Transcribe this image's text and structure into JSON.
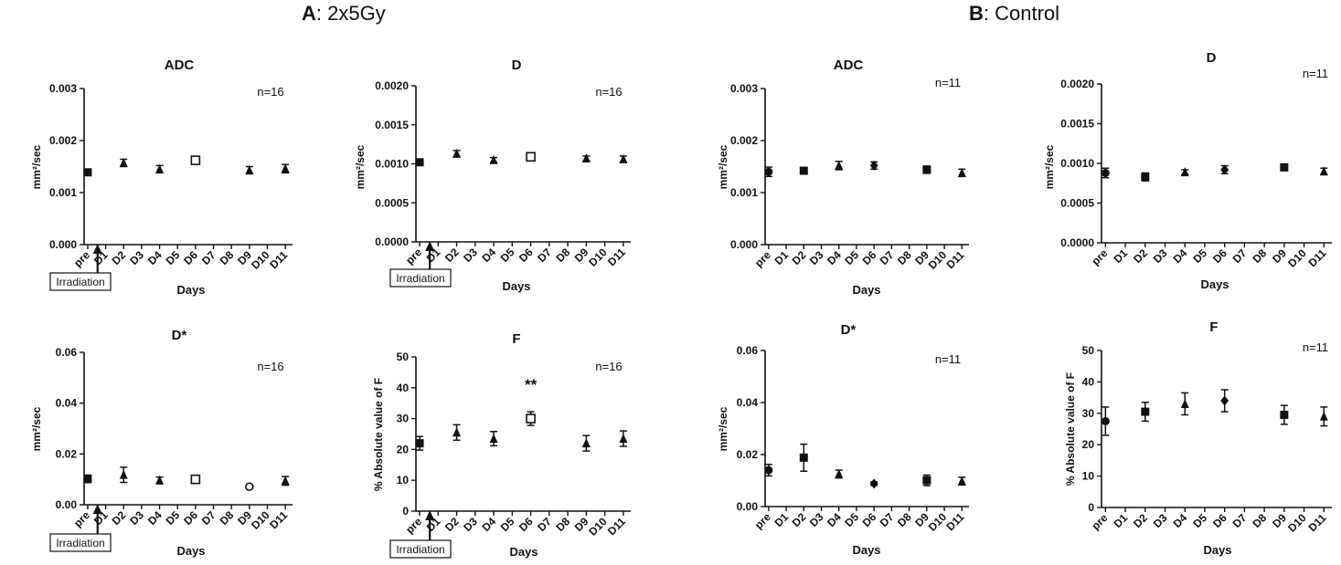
{
  "groups": [
    {
      "letter": "A",
      "label": ": 2x5Gy"
    },
    {
      "letter": "B",
      "label": ": Control"
    }
  ],
  "categories": [
    "pre",
    "D1",
    "D2",
    "D3",
    "D4",
    "D5",
    "D6",
    "D7",
    "D8",
    "D9",
    "D10",
    "D11"
  ],
  "irradiation_label": "Irradiation",
  "chart_data": [
    {
      "id": "a-adc",
      "type": "scatter",
      "title": "ADC",
      "n_label": "n=16",
      "xlabel": "Days",
      "ylabel": "mm²/sec",
      "ylim": [
        0,
        0.003
      ],
      "yticks": [
        "0.000",
        "0.001",
        "0.002",
        "0.003"
      ],
      "marker": "triangle",
      "points": [
        {
          "x": "pre",
          "y": 0.00139,
          "err": 5e-05,
          "marker": "square"
        },
        {
          "x": "D2",
          "y": 0.00157,
          "err": 7e-05
        },
        {
          "x": "D4",
          "y": 0.00145,
          "err": 7e-05
        },
        {
          "x": "D6",
          "y": 0.00162,
          "err": 5e-05,
          "marker": "square-open"
        },
        {
          "x": "D9",
          "y": 0.00143,
          "err": 7e-05
        },
        {
          "x": "D11",
          "y": 0.00146,
          "err": 8e-05
        }
      ],
      "irradiation": true
    },
    {
      "id": "a-d",
      "type": "scatter",
      "title": "D",
      "n_label": "n=16",
      "xlabel": "Days",
      "ylabel": "mm²/sec",
      "ylim": [
        0,
        0.002
      ],
      "yticks": [
        "0.0000",
        "0.0005",
        "0.0010",
        "0.0015",
        "0.0020"
      ],
      "marker": "triangle",
      "points": [
        {
          "x": "pre",
          "y": 0.00102,
          "err": 2e-05,
          "marker": "square"
        },
        {
          "x": "D2",
          "y": 0.00113,
          "err": 4e-05
        },
        {
          "x": "D4",
          "y": 0.00105,
          "err": 3e-05
        },
        {
          "x": "D6",
          "y": 0.00109,
          "err": 3e-05,
          "marker": "square-open"
        },
        {
          "x": "D9",
          "y": 0.00107,
          "err": 3e-05
        },
        {
          "x": "D11",
          "y": 0.00106,
          "err": 4e-05
        }
      ],
      "irradiation": true
    },
    {
      "id": "b-adc",
      "type": "scatter",
      "title": "ADC",
      "n_label": "n=11",
      "xlabel": "Days",
      "ylabel": "mm²/sec",
      "ylim": [
        0,
        0.003
      ],
      "yticks": [
        "0.000",
        "0.001",
        "0.002",
        "0.003"
      ],
      "marker": "triangle",
      "points": [
        {
          "x": "pre",
          "y": 0.0014,
          "err": 9e-05,
          "marker": "circle"
        },
        {
          "x": "D2",
          "y": 0.00142,
          "err": 6e-05,
          "marker": "square"
        },
        {
          "x": "D4",
          "y": 0.00152,
          "err": 8e-05
        },
        {
          "x": "D6",
          "y": 0.00152,
          "err": 7e-05,
          "marker": "diamond"
        },
        {
          "x": "D9",
          "y": 0.00144,
          "err": 7e-05,
          "marker": "square"
        },
        {
          "x": "D11",
          "y": 0.00138,
          "err": 7e-05
        }
      ],
      "irradiation": false
    },
    {
      "id": "b-d",
      "type": "scatter",
      "title": "D",
      "n_label": "n=11",
      "xlabel": "Days",
      "ylabel": "mm²/sec",
      "ylim": [
        0,
        0.002
      ],
      "yticks": [
        "0.0000",
        "0.0005",
        "0.0010",
        "0.0015",
        "0.0020"
      ],
      "marker": "triangle",
      "points": [
        {
          "x": "pre",
          "y": 0.00088,
          "err": 6e-05,
          "marker": "circle"
        },
        {
          "x": "D2",
          "y": 0.00083,
          "err": 5e-05,
          "marker": "square"
        },
        {
          "x": "D4",
          "y": 0.00089,
          "err": 3e-05
        },
        {
          "x": "D6",
          "y": 0.00092,
          "err": 5e-05,
          "marker": "diamond"
        },
        {
          "x": "D9",
          "y": 0.00095,
          "err": 2e-05,
          "marker": "square"
        },
        {
          "x": "D11",
          "y": 0.0009,
          "err": 4e-05
        }
      ],
      "irradiation": false
    },
    {
      "id": "a-dstar",
      "type": "scatter",
      "title": "D*",
      "n_label": "n=16",
      "xlabel": "Days",
      "ylabel": "mm²/sec",
      "ylim": [
        0,
        0.06
      ],
      "yticks": [
        "0.00",
        "0.02",
        "0.04",
        "0.06"
      ],
      "marker": "triangle",
      "points": [
        {
          "x": "pre",
          "y": 0.0102,
          "err": 0.0015,
          "marker": "square"
        },
        {
          "x": "D2",
          "y": 0.0118,
          "err": 0.003
        },
        {
          "x": "D4",
          "y": 0.0096,
          "err": 0.0013
        },
        {
          "x": "D6",
          "y": 0.01,
          "err": 0.0015,
          "marker": "square-open"
        },
        {
          "x": "D9",
          "y": 0.0071,
          "err": 0.0005,
          "marker": "circle-open"
        },
        {
          "x": "D11",
          "y": 0.0094,
          "err": 0.0017
        }
      ],
      "irradiation": true
    },
    {
      "id": "a-f",
      "type": "scatter",
      "title": "F",
      "n_label": "n=16",
      "xlabel": "Days",
      "ylabel": "% Absolute value of F",
      "ylim": [
        0,
        50
      ],
      "yticks": [
        "0",
        "10",
        "20",
        "30",
        "40",
        "50"
      ],
      "marker": "triangle",
      "points": [
        {
          "x": "pre",
          "y": 22,
          "err": 2.2,
          "marker": "square"
        },
        {
          "x": "D2",
          "y": 25.5,
          "err": 2.5
        },
        {
          "x": "D4",
          "y": 23.5,
          "err": 2.3
        },
        {
          "x": "D6",
          "y": 30,
          "err": 2.2,
          "marker": "square-open"
        },
        {
          "x": "D9",
          "y": 22,
          "err": 2.5
        },
        {
          "x": "D11",
          "y": 23.5,
          "err": 2.5
        }
      ],
      "annotation": {
        "x": "D6",
        "text": "**"
      },
      "irradiation": true
    },
    {
      "id": "b-dstar",
      "type": "scatter",
      "title": "D*",
      "n_label": "n=11",
      "xlabel": "Days",
      "ylabel": "mm²/sec",
      "ylim": [
        0,
        0.06
      ],
      "yticks": [
        "0.00",
        "0.02",
        "0.04",
        "0.06"
      ],
      "marker": "triangle",
      "points": [
        {
          "x": "pre",
          "y": 0.014,
          "err": 0.0022,
          "marker": "circle"
        },
        {
          "x": "D2",
          "y": 0.0188,
          "err": 0.0052,
          "marker": "square"
        },
        {
          "x": "D4",
          "y": 0.0125,
          "err": 0.0015
        },
        {
          "x": "D6",
          "y": 0.0088,
          "err": 0.0007,
          "marker": "diamond"
        },
        {
          "x": "D9",
          "y": 0.0101,
          "err": 0.002,
          "marker": "square"
        },
        {
          "x": "D11",
          "y": 0.0098,
          "err": 0.0015
        }
      ],
      "irradiation": false
    },
    {
      "id": "b-f",
      "type": "scatter",
      "title": "F",
      "n_label": "n=11",
      "xlabel": "Days",
      "ylabel": "% Absolute value of F",
      "ylim": [
        0,
        50
      ],
      "yticks": [
        "0",
        "10",
        "20",
        "30",
        "40",
        "50"
      ],
      "marker": "triangle",
      "points": [
        {
          "x": "pre",
          "y": 27.5,
          "err": 4.5,
          "marker": "circle"
        },
        {
          "x": "D2",
          "y": 30.5,
          "err": 3,
          "marker": "square"
        },
        {
          "x": "D4",
          "y": 33,
          "err": 3.5
        },
        {
          "x": "D6",
          "y": 34,
          "err": 3.5,
          "marker": "diamond"
        },
        {
          "x": "D9",
          "y": 29.5,
          "err": 3,
          "marker": "square"
        },
        {
          "x": "D11",
          "y": 29,
          "err": 3
        }
      ],
      "irradiation": false
    }
  ]
}
